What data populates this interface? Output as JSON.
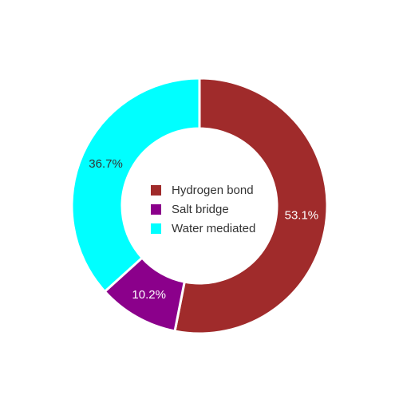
{
  "chart_data": {
    "type": "pie",
    "variant": "donut",
    "title": "",
    "categories": [
      "Hydrogen bond",
      "Salt bridge",
      "Water mediated"
    ],
    "values": [
      53.1,
      10.2,
      36.7
    ],
    "value_labels": [
      "53.1%",
      "10.2%",
      "36.7%"
    ],
    "colors": [
      "#a02b2b",
      "#8b008b",
      "#00ffff"
    ],
    "label_colors": [
      "#ffffff",
      "#ffffff",
      "#333333"
    ],
    "legend": {
      "placement": "center",
      "entries": [
        "Hydrogen bond",
        "Salt bridge",
        "Water mediated"
      ]
    }
  }
}
